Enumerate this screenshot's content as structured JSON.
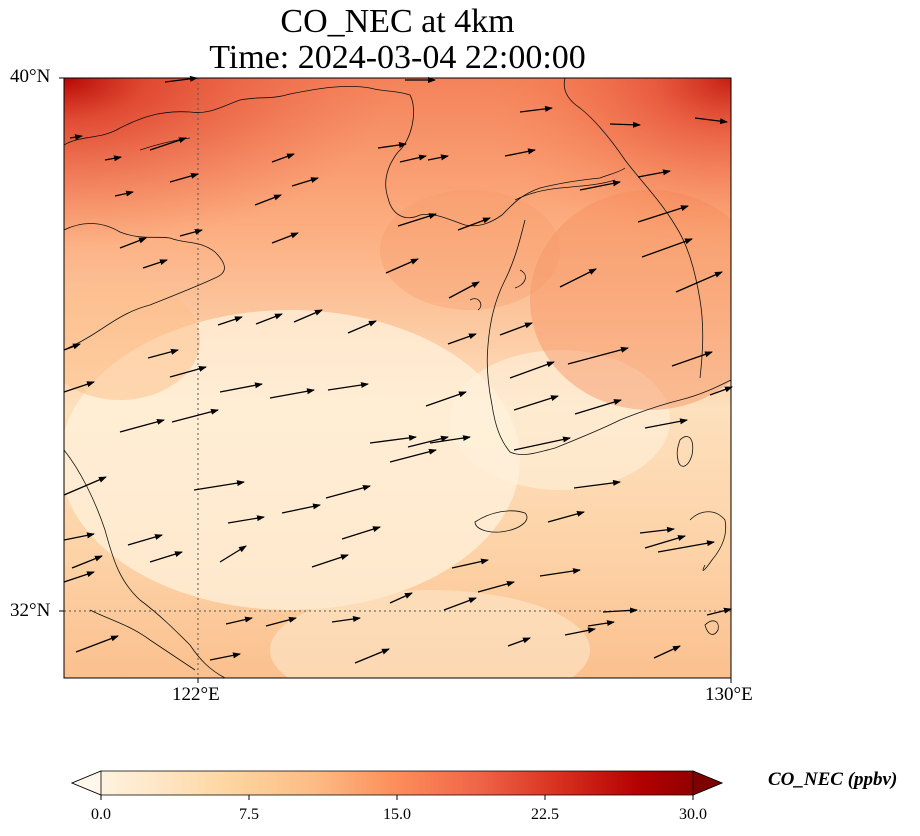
{
  "title": {
    "line1": "CO_NEC at 4km",
    "line2": "Time: 2024-03-04 22:00:00"
  },
  "map": {
    "lat_labels": [
      "40°N",
      "32°N"
    ],
    "lon_labels": [
      "122°E",
      "130°E"
    ],
    "field": "CO_NEC",
    "colormap": "OrRd",
    "gridlines": "dotted at 32°N and 122°E",
    "vectors": "wind arrows pointing east to east-northeast"
  },
  "colorbar": {
    "label": "CO_NEC (ppbv)",
    "ticks": [
      "0.0",
      "7.5",
      "15.0",
      "22.5",
      "30.0"
    ],
    "range": [
      0,
      30
    ],
    "extend": "both",
    "colors": [
      "#fff7ec",
      "#fee8c8",
      "#fdd49e",
      "#fdbb84",
      "#fc8d59",
      "#ef6548",
      "#d7301f",
      "#b30000",
      "#7f0000"
    ]
  }
}
